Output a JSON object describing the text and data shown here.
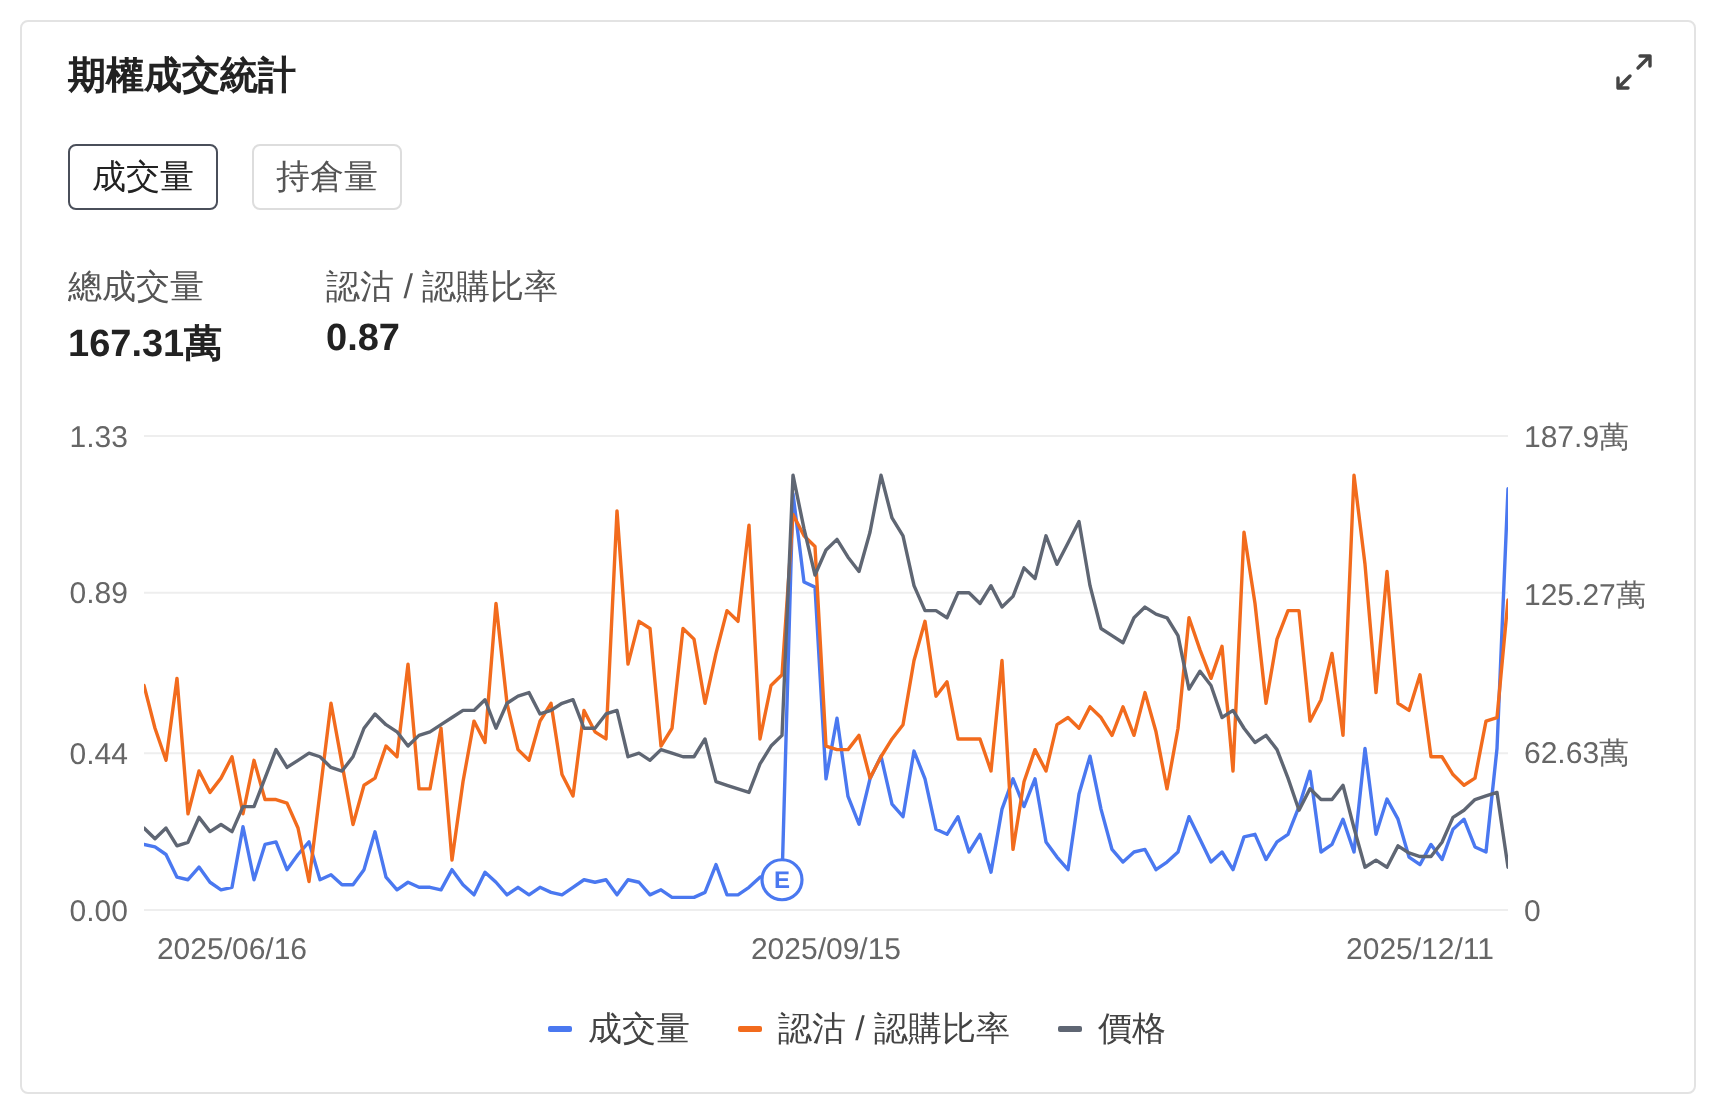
{
  "chart_data": {
    "type": "line",
    "title": "期權成交統計",
    "annotations": [
      "成交量",
      "持倉量",
      "總成交量",
      "167.31萬",
      "認沽 / 認購比率",
      "0.87"
    ],
    "categories": [
      null,
      null,
      null,
      null,
      null,
      null,
      null,
      null,
      "2025/06/16",
      null,
      null,
      null,
      null,
      null,
      null,
      null,
      null,
      null,
      null,
      null,
      null,
      null,
      null,
      null,
      null,
      null,
      null,
      null,
      null,
      null,
      null,
      null,
      null,
      null,
      null,
      null,
      null,
      null,
      null,
      null,
      null,
      null,
      null,
      null,
      null,
      null,
      null,
      null,
      null,
      null,
      null,
      null,
      null,
      null,
      null,
      null,
      null,
      null,
      null,
      null,
      null,
      null,
      "2025/09/15",
      null,
      null,
      null,
      null,
      null,
      null,
      null,
      null,
      null,
      null,
      null,
      null,
      null,
      null,
      null,
      null,
      null,
      null,
      null,
      null,
      null,
      null,
      null,
      null,
      null,
      null,
      null,
      null,
      null,
      null,
      null,
      null,
      null,
      null,
      null,
      null,
      null,
      null,
      null,
      null,
      null,
      null,
      null,
      null,
      null,
      null,
      null,
      null,
      null,
      null,
      null,
      null,
      null,
      "2025/12/11",
      null,
      null,
      null,
      null,
      null,
      null,
      null,
      null
    ],
    "series": [
      {
        "name": "成交量",
        "color": "#4a78f0",
        "axis": "y2",
        "values": [
          26,
          25,
          22,
          13,
          12,
          17,
          11,
          8,
          9,
          33,
          12,
          26,
          27,
          16,
          22,
          27,
          12,
          14,
          10,
          10,
          16,
          31,
          13,
          8,
          11,
          9,
          9,
          8,
          16,
          10,
          6,
          15,
          11,
          6,
          9,
          6,
          9,
          7,
          6,
          9,
          12,
          11,
          12,
          6,
          12,
          11,
          6,
          8,
          5,
          5,
          5,
          7,
          18,
          6,
          6,
          9,
          13,
          14,
          12,
          165,
          130,
          128,
          52,
          76,
          45,
          34,
          52,
          61,
          42,
          37,
          63,
          52,
          32,
          30,
          37,
          23,
          30,
          15,
          40,
          52,
          41,
          52,
          27,
          21,
          16,
          46,
          61,
          40,
          24,
          19,
          23,
          24,
          16,
          19,
          23,
          37,
          28,
          19,
          23,
          16,
          29,
          30,
          20,
          27,
          30,
          41,
          55,
          23,
          26,
          36,
          23,
          64,
          30,
          44,
          36,
          21,
          18,
          26,
          20,
          32,
          36,
          25,
          23,
          64,
          167
        ],
        "value_labels": [
          null,
          null,
          null,
          null,
          null,
          null,
          null,
          null,
          null,
          null,
          null,
          null,
          null,
          null,
          null,
          null,
          null,
          null,
          null,
          null,
          null,
          null,
          null,
          null,
          null,
          null,
          null,
          null,
          null,
          null,
          null,
          null,
          null,
          null,
          null,
          null,
          null,
          null,
          null,
          null,
          null,
          null,
          null,
          null,
          null,
          null,
          null,
          null,
          null,
          null,
          null,
          null,
          null,
          null,
          null,
          null,
          null,
          null,
          "E",
          null,
          null,
          null,
          null,
          null,
          null,
          null,
          null,
          null,
          null,
          null,
          null,
          null,
          null,
          null,
          null,
          null,
          null,
          null,
          null,
          null,
          null,
          null,
          null,
          null,
          null,
          null,
          null,
          null,
          null,
          null,
          null,
          null,
          null,
          null,
          null,
          null,
          null,
          null,
          null,
          null,
          null,
          null,
          null,
          null,
          null,
          null,
          null,
          null,
          null,
          null,
          null,
          null,
          null,
          null,
          null,
          null,
          null,
          null,
          null,
          null,
          null,
          null,
          null,
          null,
          null
        ]
      },
      {
        "name": "認沽 / 認購比率",
        "color": "#f26b1d",
        "values": [
          0.63,
          0.51,
          0.42,
          0.65,
          0.27,
          0.39,
          0.33,
          0.37,
          0.43,
          0.27,
          0.42,
          0.31,
          0.31,
          0.3,
          0.23,
          0.08,
          0.33,
          0.58,
          0.41,
          0.24,
          0.35,
          0.37,
          0.46,
          0.43,
          0.69,
          0.34,
          0.34,
          0.51,
          0.14,
          0.36,
          0.53,
          0.47,
          0.86,
          0.58,
          0.45,
          0.42,
          0.53,
          0.58,
          0.38,
          0.32,
          0.56,
          0.5,
          0.48,
          1.12,
          0.69,
          0.81,
          0.79,
          0.46,
          0.51,
          0.79,
          0.76,
          0.58,
          0.72,
          0.84,
          0.81,
          1.08,
          0.48,
          0.63,
          0.66,
          1.11,
          1.05,
          1.02,
          0.46,
          0.45,
          0.45,
          0.49,
          0.37,
          0.43,
          0.48,
          0.52,
          0.7,
          0.81,
          0.6,
          0.64,
          0.48,
          0.48,
          0.48,
          0.39,
          0.7,
          0.17,
          0.36,
          0.45,
          0.39,
          0.52,
          0.54,
          0.51,
          0.57,
          0.54,
          0.49,
          0.57,
          0.49,
          0.61,
          0.5,
          0.34,
          0.51,
          0.82,
          0.73,
          0.65,
          0.74,
          0.39,
          1.06,
          0.86,
          0.58,
          0.76,
          0.84,
          0.84,
          0.53,
          0.59,
          0.72,
          0.49,
          1.22,
          0.97,
          0.61,
          0.95,
          0.58,
          0.56,
          0.66,
          0.43,
          0.43,
          0.38,
          0.35,
          0.37,
          0.53,
          0.54,
          0.87
        ]
      },
      {
        "name": "價格",
        "color": "#5f6673",
        "values": [
          0.23,
          0.2,
          0.23,
          0.18,
          0.19,
          0.26,
          0.22,
          0.24,
          0.22,
          0.29,
          0.29,
          0.37,
          0.45,
          0.4,
          0.42,
          0.44,
          0.43,
          0.4,
          0.39,
          0.43,
          0.51,
          0.55,
          0.52,
          0.5,
          0.46,
          0.49,
          0.5,
          0.52,
          0.54,
          0.56,
          0.56,
          0.59,
          0.51,
          0.58,
          0.6,
          0.61,
          0.55,
          0.56,
          0.58,
          0.59,
          0.51,
          0.51,
          0.55,
          0.56,
          0.43,
          0.44,
          0.42,
          0.45,
          0.44,
          0.43,
          0.43,
          0.48,
          0.36,
          0.35,
          0.34,
          0.33,
          0.41,
          0.46,
          0.49,
          1.22,
          1.07,
          0.94,
          1.01,
          1.04,
          0.99,
          0.95,
          1.06,
          1.22,
          1.1,
          1.05,
          0.91,
          0.84,
          0.84,
          0.82,
          0.89,
          0.89,
          0.86,
          0.91,
          0.85,
          0.88,
          0.96,
          0.93,
          1.05,
          0.97,
          1.03,
          1.09,
          0.91,
          0.79,
          0.77,
          0.75,
          0.82,
          0.85,
          0.83,
          0.82,
          0.77,
          0.62,
          0.67,
          0.63,
          0.54,
          0.56,
          0.51,
          0.47,
          0.49,
          0.45,
          0.37,
          0.28,
          0.34,
          0.31,
          0.31,
          0.35,
          0.23,
          0.12,
          0.14,
          0.12,
          0.18,
          0.16,
          0.15,
          0.15,
          0.19,
          0.26,
          0.28,
          0.31,
          0.32,
          0.33,
          0.12
        ]
      }
    ],
    "ylim": [
      0,
      1.33
    ],
    "yticks": [
      {
        "value": 0,
        "label": "0.00"
      },
      0.44,
      0.89,
      1.33
    ],
    "y2lim": [
      0,
      187.9
    ],
    "y2ticks": [
      0,
      {
        "value": 62.63,
        "label": "62.63萬"
      },
      {
        "value": 125.27,
        "label": "125.27萬"
      },
      {
        "value": 187.9,
        "label": "187.9萬"
      }
    ],
    "grid": "y",
    "legend": "bottom"
  }
}
